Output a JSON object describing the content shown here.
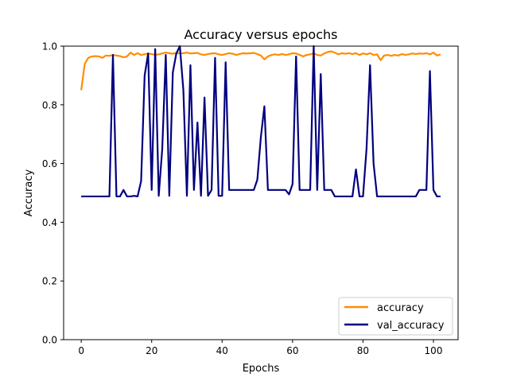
{
  "chart_data": {
    "type": "line",
    "title": "Accuracy versus epochs",
    "xlabel": "Epochs",
    "ylabel": "Accuracy",
    "xlim": [
      -5,
      107
    ],
    "ylim": [
      0.0,
      1.0
    ],
    "x_ticks": [
      0,
      20,
      40,
      60,
      80,
      100
    ],
    "y_ticks": [
      0.0,
      0.2,
      0.4,
      0.6,
      0.8,
      1.0
    ],
    "x_tick_labels": [
      "0",
      "20",
      "40",
      "60",
      "80",
      "100"
    ],
    "y_tick_labels": [
      "0.0",
      "0.2",
      "0.4",
      "0.6",
      "0.8",
      "1.0"
    ],
    "grid": false,
    "legend_position": "lower-right",
    "series": [
      {
        "name": "accuracy",
        "color": "#ff8c00",
        "x": [
          0,
          1,
          2,
          3,
          4,
          5,
          6,
          7,
          8,
          9,
          10,
          11,
          12,
          13,
          14,
          15,
          16,
          17,
          18,
          19,
          20,
          21,
          22,
          23,
          24,
          25,
          26,
          27,
          28,
          29,
          30,
          31,
          32,
          33,
          34,
          35,
          36,
          37,
          38,
          39,
          40,
          41,
          42,
          43,
          44,
          45,
          46,
          47,
          48,
          49,
          50,
          51,
          52,
          53,
          54,
          55,
          56,
          57,
          58,
          59,
          60,
          61,
          62,
          63,
          64,
          65,
          66,
          67,
          68,
          69,
          70,
          71,
          72,
          73,
          74,
          75,
          76,
          77,
          78,
          79,
          80,
          81,
          82,
          83,
          84,
          85,
          86,
          87,
          88,
          89,
          90,
          91,
          92,
          93,
          94,
          95,
          96,
          97,
          98,
          99,
          100,
          101,
          102
        ],
        "values": [
          0.85,
          0.94,
          0.96,
          0.965,
          0.966,
          0.965,
          0.96,
          0.968,
          0.967,
          0.97,
          0.968,
          0.966,
          0.962,
          0.965,
          0.978,
          0.97,
          0.976,
          0.97,
          0.972,
          0.975,
          0.973,
          0.97,
          0.972,
          0.975,
          0.978,
          0.976,
          0.974,
          0.977,
          0.975,
          0.976,
          0.978,
          0.975,
          0.976,
          0.977,
          0.972,
          0.97,
          0.973,
          0.975,
          0.976,
          0.972,
          0.97,
          0.973,
          0.976,
          0.974,
          0.97,
          0.973,
          0.976,
          0.975,
          0.976,
          0.977,
          0.973,
          0.968,
          0.955,
          0.965,
          0.97,
          0.972,
          0.97,
          0.973,
          0.97,
          0.972,
          0.976,
          0.975,
          0.97,
          0.965,
          0.97,
          0.972,
          0.975,
          0.97,
          0.968,
          0.975,
          0.98,
          0.982,
          0.978,
          0.972,
          0.976,
          0.974,
          0.976,
          0.973,
          0.976,
          0.97,
          0.975,
          0.972,
          0.976,
          0.97,
          0.972,
          0.952,
          0.968,
          0.97,
          0.967,
          0.97,
          0.968,
          0.973,
          0.97,
          0.972,
          0.975,
          0.973,
          0.975,
          0.974,
          0.976,
          0.972,
          0.978,
          0.968,
          0.972
        ]
      },
      {
        "name": "val_accuracy",
        "color": "#00007f",
        "x": [
          0,
          1,
          2,
          3,
          4,
          5,
          6,
          7,
          8,
          9,
          10,
          11,
          12,
          13,
          14,
          15,
          16,
          17,
          18,
          19,
          20,
          21,
          22,
          23,
          24,
          25,
          26,
          27,
          28,
          29,
          30,
          31,
          32,
          33,
          34,
          35,
          36,
          37,
          38,
          39,
          40,
          41,
          42,
          43,
          44,
          45,
          46,
          47,
          48,
          49,
          50,
          51,
          52,
          53,
          54,
          55,
          56,
          57,
          58,
          59,
          60,
          61,
          62,
          63,
          64,
          65,
          66,
          67,
          68,
          69,
          70,
          71,
          72,
          73,
          74,
          75,
          76,
          77,
          78,
          79,
          80,
          81,
          82,
          83,
          84,
          85,
          86,
          87,
          88,
          89,
          90,
          91,
          92,
          93,
          94,
          95,
          96,
          97,
          98,
          99,
          100,
          101,
          102
        ],
        "values": [
          0.488,
          0.488,
          0.488,
          0.488,
          0.488,
          0.488,
          0.488,
          0.488,
          0.488,
          0.97,
          0.488,
          0.488,
          0.51,
          0.488,
          0.488,
          0.49,
          0.488,
          0.54,
          0.9,
          0.975,
          0.51,
          0.99,
          0.49,
          0.65,
          0.97,
          0.49,
          0.91,
          0.975,
          1.0,
          0.85,
          0.49,
          0.935,
          0.51,
          0.74,
          0.49,
          0.825,
          0.49,
          0.51,
          0.96,
          0.49,
          0.49,
          0.945,
          0.51,
          0.51,
          0.51,
          0.51,
          0.51,
          0.51,
          0.51,
          0.51,
          0.545,
          0.69,
          0.795,
          0.51,
          0.51,
          0.51,
          0.51,
          0.51,
          0.51,
          0.495,
          0.53,
          0.965,
          0.51,
          0.51,
          0.51,
          0.51,
          1.0,
          0.51,
          0.905,
          0.51,
          0.51,
          0.51,
          0.488,
          0.488,
          0.488,
          0.488,
          0.488,
          0.488,
          0.58,
          0.488,
          0.488,
          0.65,
          0.935,
          0.6,
          0.488,
          0.488,
          0.488,
          0.488,
          0.488,
          0.488,
          0.488,
          0.488,
          0.488,
          0.488,
          0.488,
          0.488,
          0.51,
          0.51,
          0.51,
          0.915,
          0.51,
          0.488,
          0.488
        ]
      }
    ]
  }
}
